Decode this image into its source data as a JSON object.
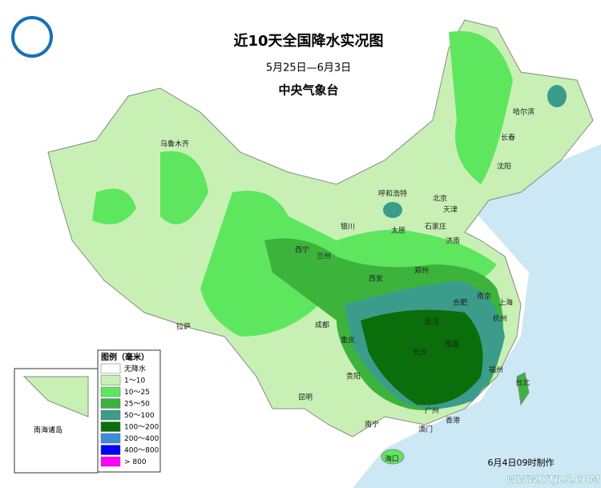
{
  "header": {
    "title": "近10天全国降水实况图",
    "period": "5月25日—6月3日",
    "agency": "中央气象台"
  },
  "legend": {
    "title": "图例（毫米）",
    "items": [
      {
        "label": "无降水",
        "color": "#ffffff"
      },
      {
        "label": "1～10",
        "color": "#c8f0b4"
      },
      {
        "label": "10～25",
        "color": "#5ee65e"
      },
      {
        "label": "25～50",
        "color": "#3cb43c"
      },
      {
        "label": "50～100",
        "color": "#3c9c8c"
      },
      {
        "label": "100～200",
        "color": "#0a6e0a"
      },
      {
        "label": "200～400",
        "color": "#3c8cdc"
      },
      {
        "label": "400～800",
        "color": "#0000ff"
      },
      {
        "label": "> 800",
        "color": "#ff00ff"
      }
    ]
  },
  "cities": [
    "乌鲁木齐",
    "哈尔滨",
    "长春",
    "沈阳",
    "呼和浩特",
    "北京",
    "天津",
    "石家庄",
    "太原",
    "银川",
    "济南",
    "西宁",
    "兰州",
    "郑州",
    "西安",
    "合肥",
    "南京",
    "上海",
    "杭州",
    "武汉",
    "成都",
    "重庆",
    "拉萨",
    "长沙",
    "南昌",
    "福州",
    "台北",
    "贵阳",
    "昆明",
    "南宁",
    "广州",
    "香港",
    "澳门",
    "海口"
  ],
  "inset": "南海诸岛",
  "footer": "6月4日09时制作",
  "watermark": "WWW.YTJLS.COM"
}
